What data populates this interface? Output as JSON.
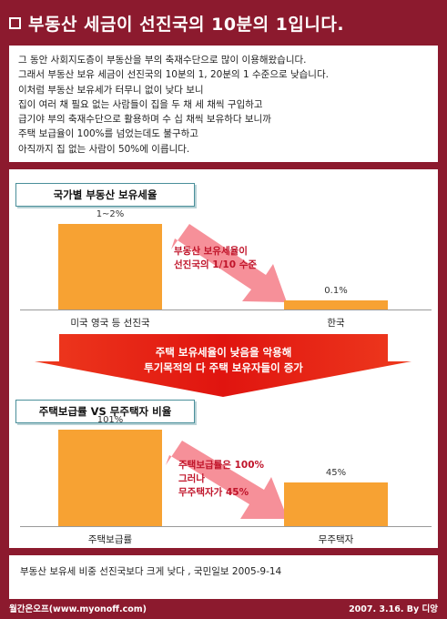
{
  "title": "부동산 세금이 선진국의 10분의 1입니다.",
  "intro": [
    "그 동안 사회지도층이 부동산을 부의 축재수단으로 많이 이용해왔습니다.",
    "그래서 부동산 보유 세금이 선진국의 10분의 1, 20분의 1 수준으로 낮습니다.",
    "이처럼 부동산 보유세가 터무니 없이 낮다 보니",
    "집이 여러 채 필요 없는 사람들이 집을 두 채 세 채씩 구입하고",
    "급기야 부의 축재수단으로 활용하며 수 십 채씩 보유하다 보니까",
    "주택 보급율이 100%를 넘었는데도 불구하고",
    "아직까지 집 없는 사람이 50%에 이릅니다."
  ],
  "section1": {
    "header": "국가별 부동산 보유세율",
    "note": [
      "부동산 보유세율이",
      "선진국의 1/10 수준"
    ]
  },
  "section2": {
    "header": "주택보급률 VS 무주택자 비율",
    "note": [
      "주택보급률은 100%",
      "그러나",
      "무주택자가 45%"
    ]
  },
  "middle_arrow": [
    "주택 보유세율이 낮음을 악용해",
    "투기목적의 다 주택 보유자들이 증가"
  ],
  "source": "부동산 보유세 비중 선진국보다 크게 낮다 , 국민일보 2005-9-14",
  "footer": {
    "left": "월간온오프(www.myonoff.com)",
    "right": "2007. 3.16. By 디앙"
  },
  "colors": {
    "background": "#8c1a2e",
    "bar": "#f7a233",
    "arrow_pink": "#f58a94",
    "arrow_red": "#e8231e",
    "note_text": "#c0142a"
  },
  "chart_data": [
    {
      "type": "bar",
      "title": "국가별 부동산 보유세율",
      "categories": [
        "미국 영국 등 선진국",
        "한국"
      ],
      "value_labels": [
        "1~2%",
        "0.1%"
      ],
      "values": [
        1.5,
        0.1
      ],
      "value_range_first": [
        1,
        2
      ],
      "ylim": [
        0,
        2
      ]
    },
    {
      "type": "bar",
      "title": "주택보급률 VS 무주택자 비율",
      "categories": [
        "주택보급률",
        "무주택자"
      ],
      "value_labels": [
        "101%",
        "45%"
      ],
      "values": [
        101,
        45
      ],
      "ylim": [
        0,
        120
      ]
    }
  ]
}
